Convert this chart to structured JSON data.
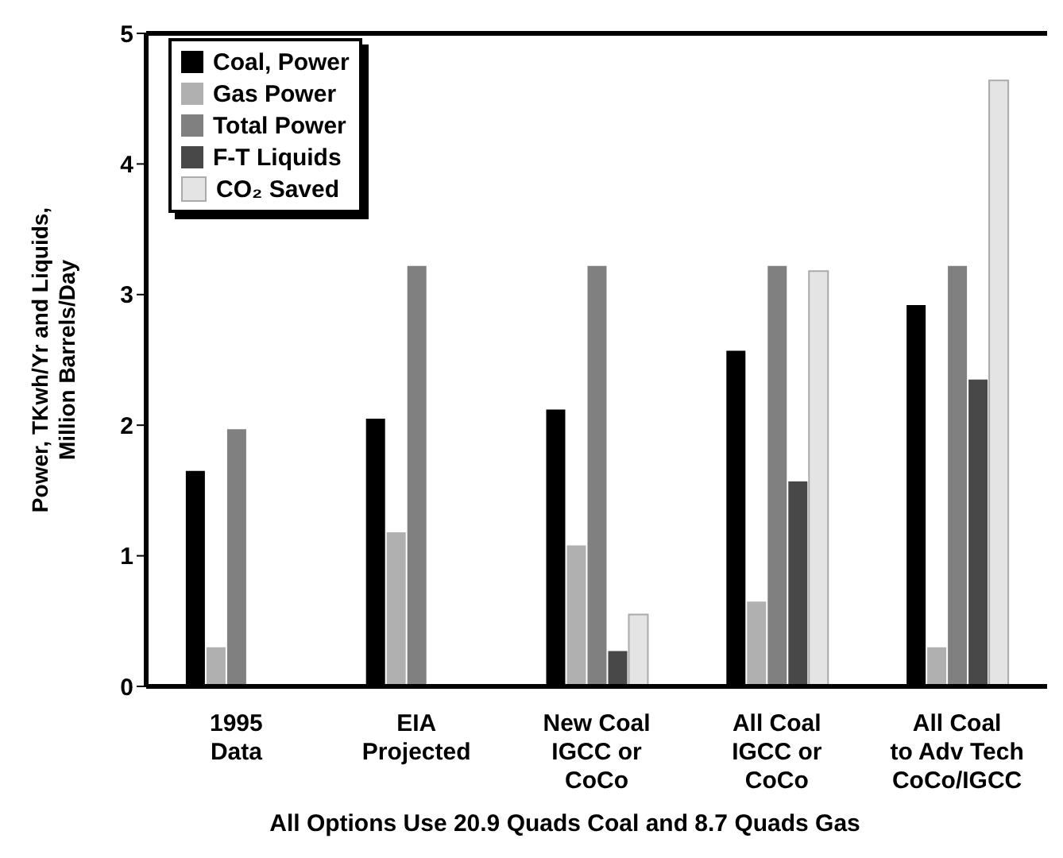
{
  "chart_data": {
    "type": "bar",
    "ylabel": "Power, TKwh/Yr and Liquids,\nMillion Barrels/Day",
    "xlabel": "All Options Use 20.9 Quads Coal and 8.7 Quads Gas",
    "categories": [
      "1995\nData",
      "EIA\nProjected",
      "New Coal\nIGCC or\nCoCo",
      "All Coal\nIGCC or\nCoCo",
      "All Coal\nto Adv Tech\nCoCo/IGCC"
    ],
    "series": [
      {
        "name": "Coal, Power",
        "color": "#000000",
        "values": [
          1.65,
          2.05,
          2.12,
          2.57,
          2.92
        ]
      },
      {
        "name": "Gas Power",
        "color": "#b0b0b0",
        "values": [
          0.3,
          1.18,
          1.08,
          0.65,
          0.3
        ]
      },
      {
        "name": "Total Power",
        "color": "#808080",
        "values": [
          1.97,
          3.22,
          3.22,
          3.22,
          3.22
        ]
      },
      {
        "name": "F-T Liquids",
        "color": "#484848",
        "values": [
          null,
          null,
          0.27,
          1.57,
          2.35
        ]
      },
      {
        "name": "CO₂ Saved",
        "color": "#e4e4e4",
        "values": [
          null,
          null,
          0.55,
          3.18,
          4.64
        ]
      }
    ],
    "ylim": [
      0,
      5
    ],
    "yticks": [
      0,
      1,
      2,
      3,
      4,
      5
    ],
    "grid": false,
    "legend": "top left"
  }
}
